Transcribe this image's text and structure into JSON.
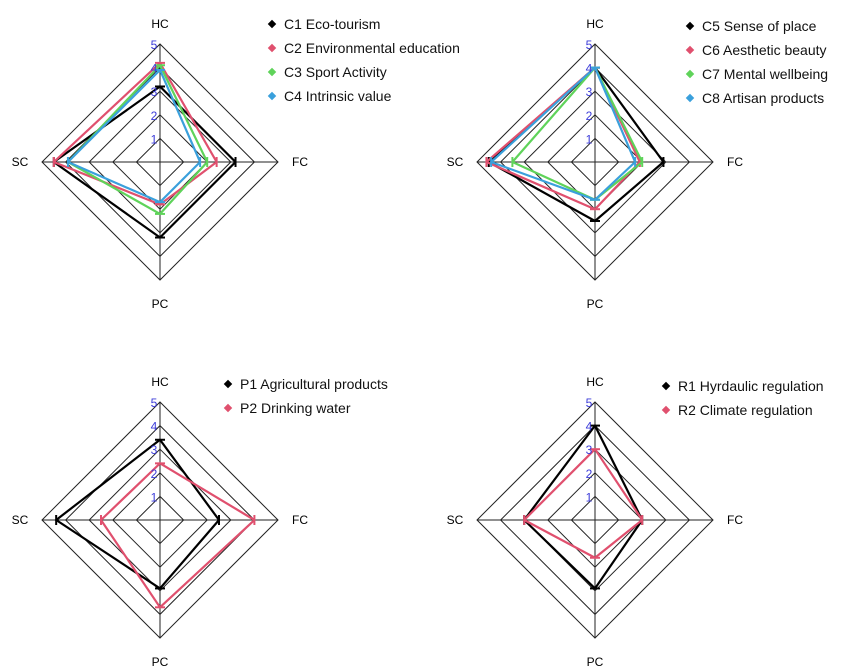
{
  "chart_data": [
    {
      "type": "radar",
      "axes": [
        "HC",
        "FC",
        "PC",
        "SC"
      ],
      "ticks": [
        "1",
        "2",
        "3",
        "4",
        "5"
      ],
      "rlim": [
        0,
        5
      ],
      "legend_position": "top-right",
      "series": [
        {
          "name": "C1 Eco-tourism",
          "color": "#000000",
          "values": [
            3.2,
            3.2,
            3.2,
            4.5
          ]
        },
        {
          "name": "C2 Environmental education",
          "color": "#e0506e",
          "values": [
            4.2,
            2.4,
            1.8,
            4.5
          ]
        },
        {
          "name": "C3 Sport Activity",
          "color": "#5fd35a",
          "values": [
            4.1,
            2.0,
            2.2,
            3.9
          ]
        },
        {
          "name": "C4 Intrinsic value",
          "color": "#3aa0dc",
          "values": [
            3.9,
            1.7,
            1.7,
            3.9
          ]
        }
      ]
    },
    {
      "type": "radar",
      "axes": [
        "HC",
        "FC",
        "PC",
        "SC"
      ],
      "ticks": [
        "1",
        "2",
        "3",
        "4",
        "5"
      ],
      "rlim": [
        0,
        5
      ],
      "legend_position": "top-right",
      "series": [
        {
          "name": "C5 Sense of place",
          "color": "#000000",
          "values": [
            4.0,
            2.9,
            2.5,
            4.5
          ]
        },
        {
          "name": "C6 Aesthetic beauty",
          "color": "#e0506e",
          "values": [
            4.0,
            1.9,
            2.0,
            4.6
          ]
        },
        {
          "name": "C7 Mental wellbeing",
          "color": "#5fd35a",
          "values": [
            4.0,
            2.0,
            1.6,
            3.5
          ]
        },
        {
          "name": "C8 Artisan products",
          "color": "#3aa0dc",
          "values": [
            4.0,
            1.7,
            1.6,
            4.4
          ]
        }
      ]
    },
    {
      "type": "radar",
      "axes": [
        "HC",
        "FC",
        "PC",
        "SC"
      ],
      "ticks": [
        "1",
        "2",
        "3",
        "4",
        "5"
      ],
      "rlim": [
        0,
        5
      ],
      "legend_position": "top-right",
      "series": [
        {
          "name": "P1 Agricultural products",
          "color": "#000000",
          "values": [
            3.4,
            2.5,
            2.9,
            4.4
          ]
        },
        {
          "name": "P2 Drinking water",
          "color": "#e0506e",
          "values": [
            2.4,
            4.0,
            3.7,
            2.5
          ]
        }
      ]
    },
    {
      "type": "radar",
      "axes": [
        "HC",
        "FC",
        "PC",
        "SC"
      ],
      "ticks": [
        "1",
        "2",
        "3",
        "4",
        "5"
      ],
      "rlim": [
        0,
        5
      ],
      "legend_position": "top-right",
      "series": [
        {
          "name": "R1 Hyrdaulic regulation",
          "color": "#000000",
          "values": [
            4.0,
            2.0,
            2.9,
            3.0
          ]
        },
        {
          "name": "R2 Climate regulation",
          "color": "#e0506e",
          "values": [
            3.0,
            2.0,
            1.6,
            3.0
          ]
        }
      ]
    }
  ]
}
